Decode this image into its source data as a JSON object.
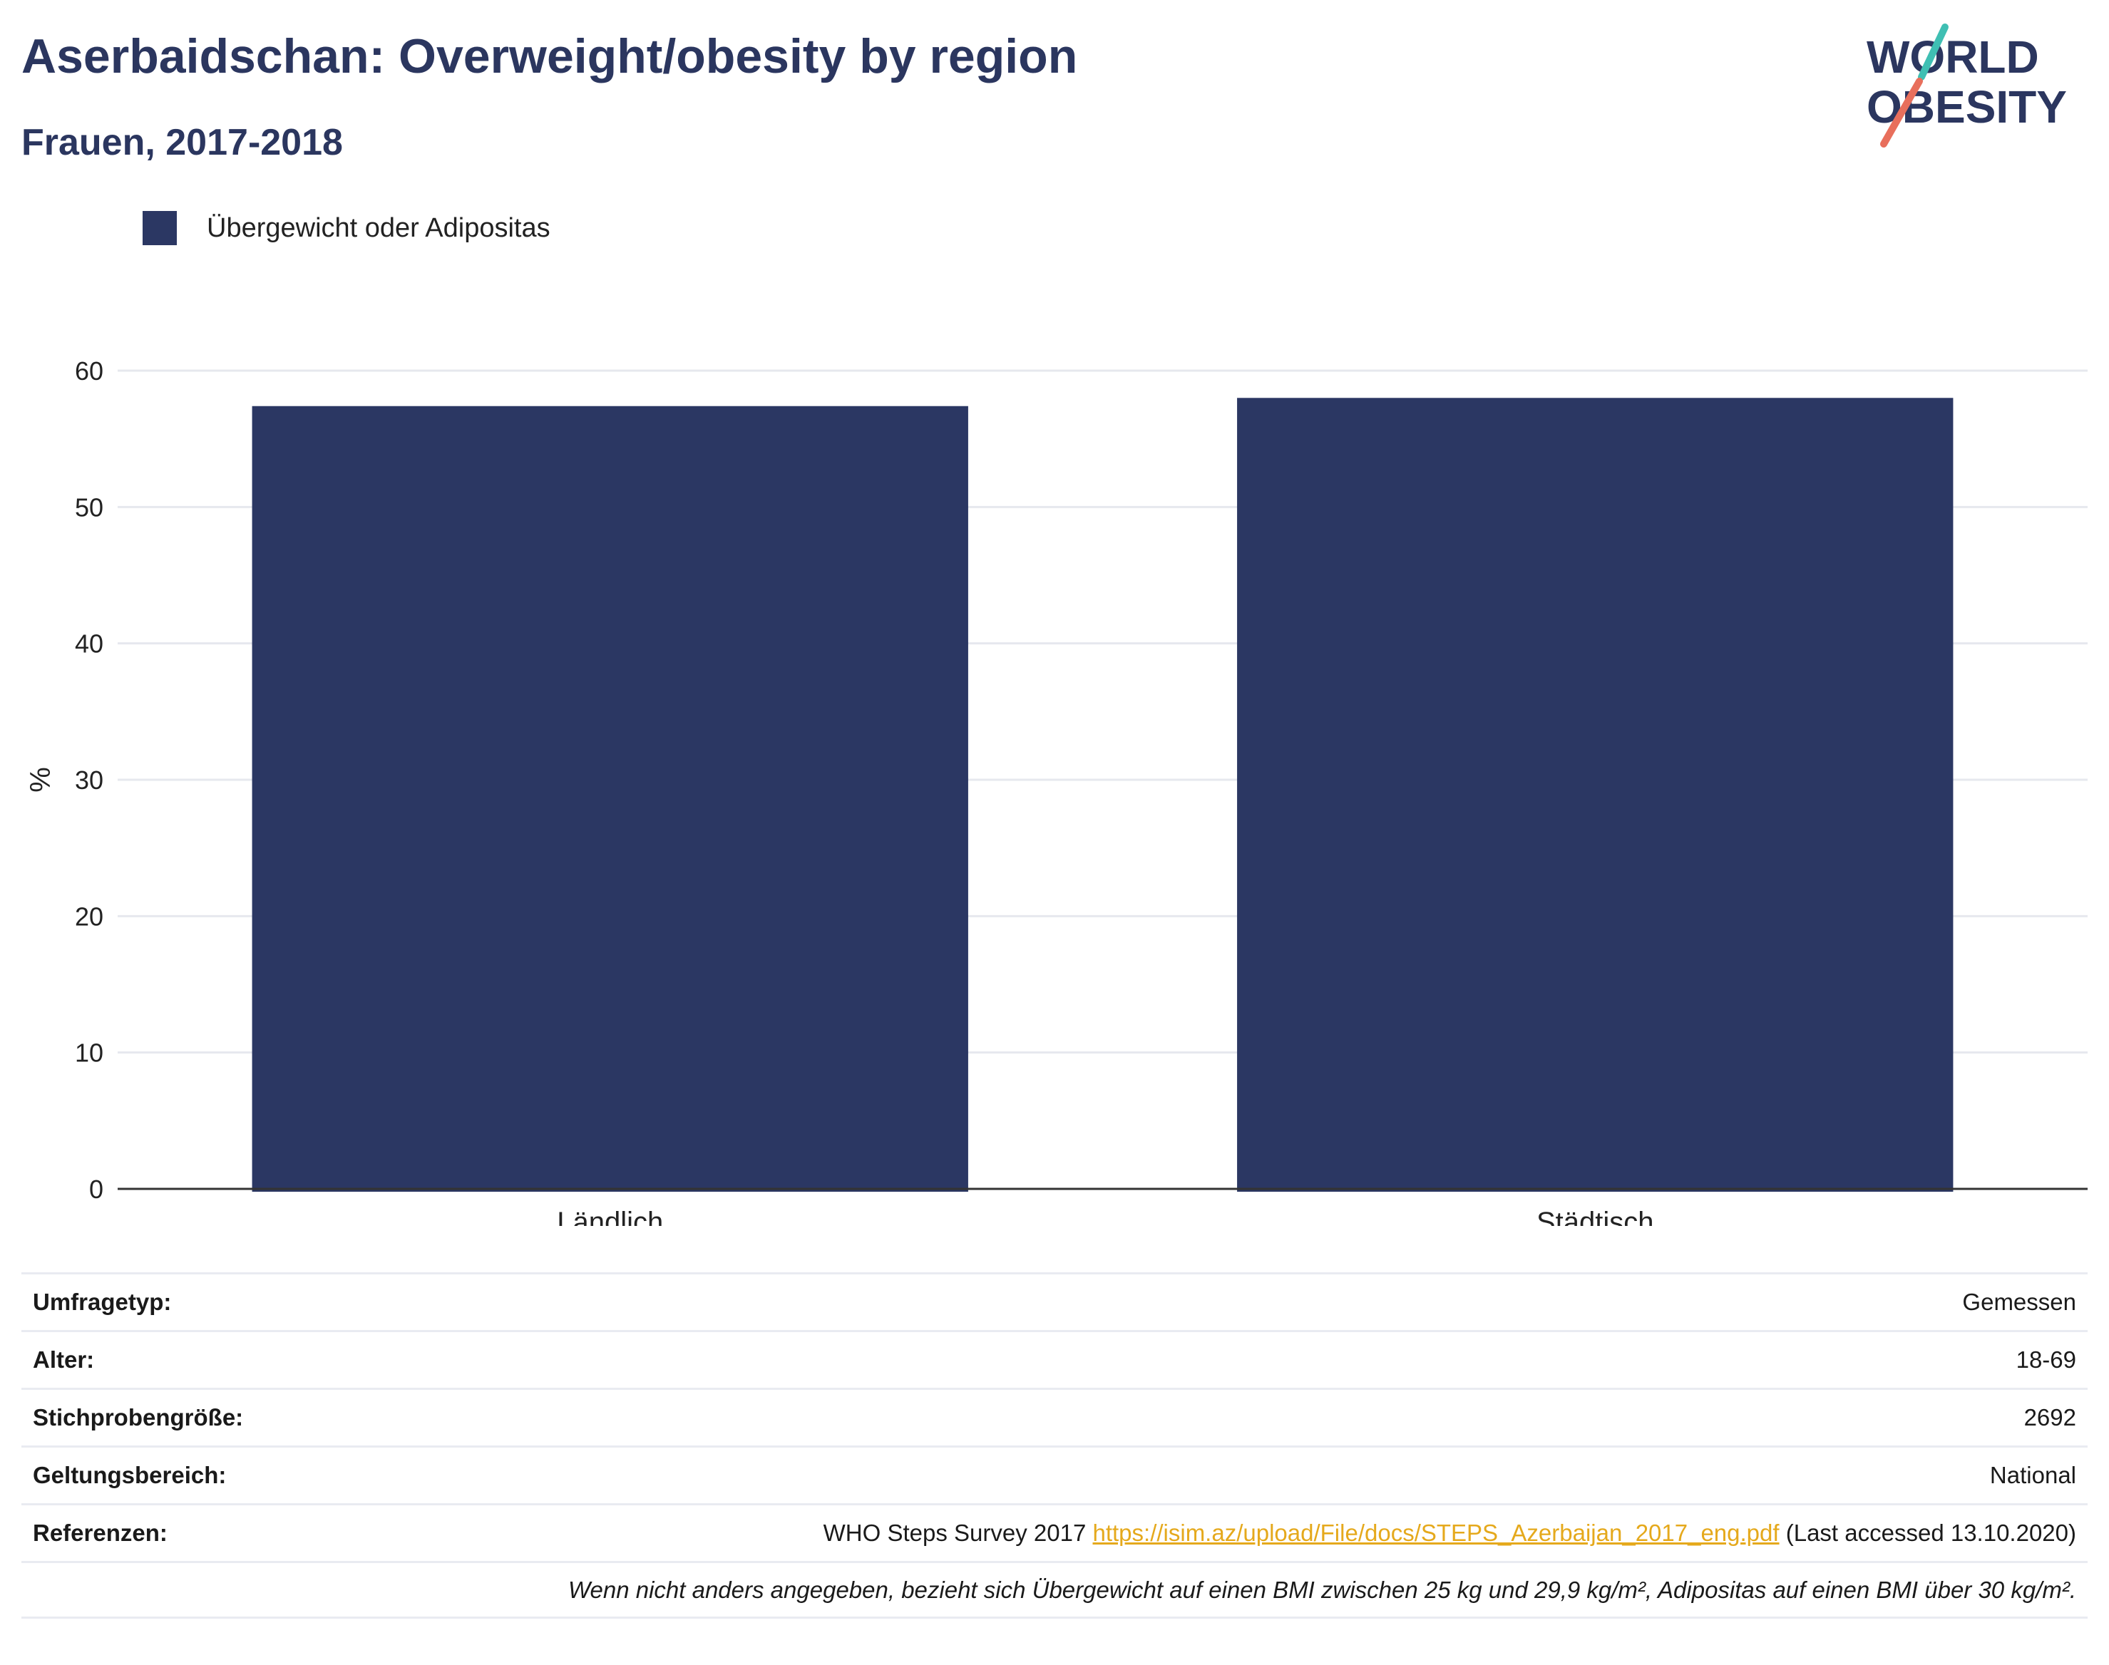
{
  "header": {
    "title": "Aserbaidschan: Overweight/obesity by region",
    "subtitle": "Frauen, 2017-2018"
  },
  "logo": {
    "line1": "WORLD",
    "line2": "OBESITY",
    "colors": {
      "text": "#2b365f",
      "teal": "#3fbfb3",
      "coral": "#e86f5c"
    }
  },
  "colors": {
    "bar": "#2b3763",
    "grid": "#e6e8ee",
    "axis": "#333333"
  },
  "chart_data": {
    "type": "bar",
    "categories": [
      "Ländlich",
      "Städtisch"
    ],
    "series": [
      {
        "name": "Übergewicht oder Adipositas",
        "values": [
          57.4,
          58.0
        ]
      }
    ],
    "title": "Aserbaidschan: Overweight/obesity by region",
    "subtitle": "Frauen, 2017-2018",
    "xlabel": "",
    "ylabel": "%",
    "ylim": [
      0,
      60
    ],
    "yticks": [
      0,
      10,
      20,
      30,
      40,
      50,
      60
    ],
    "grid": true,
    "legend": "top-left"
  },
  "info": {
    "survey_type_label": "Umfragetyp:",
    "survey_type_value": "Gemessen",
    "age_label": "Alter:",
    "age_value": "18-69",
    "sample_size_label": "Stichprobengröße:",
    "sample_size_value": "2692",
    "scope_label": "Geltungsbereich:",
    "scope_value": "National",
    "references_label": "Referenzen:",
    "reference_source": "WHO Steps Survey 2017",
    "reference_url": "https://isim.az/upload/File/docs/STEPS_Azerbaijan_2017_eng.pdf",
    "reference_accessed": "(Last accessed 13.10.2020)",
    "footnote": "Wenn nicht anders angegeben, bezieht sich Übergewicht auf einen BMI zwischen 25 kg und 29,9 kg/m², Adipositas auf einen BMI über 30 kg/m²."
  }
}
